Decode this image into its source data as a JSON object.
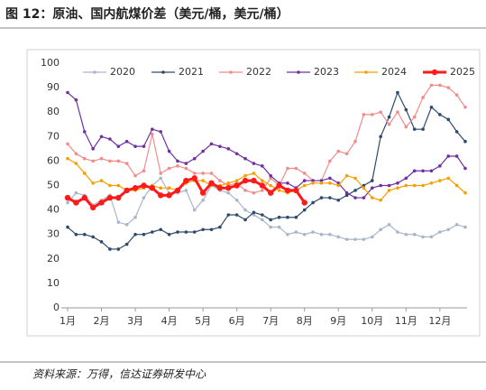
{
  "chart_data": {
    "type": "line",
    "title": "图 12：原油、国内航煤价差（美元/桶，美元/桶）",
    "source": "资料来源：万得，信达证券研发中心",
    "categories": [
      "1月",
      null,
      null,
      null,
      "2月",
      null,
      null,
      null,
      "3月",
      null,
      null,
      null,
      "4月",
      null,
      null,
      null,
      "5月",
      null,
      null,
      null,
      "6月",
      null,
      null,
      null,
      "7月",
      null,
      null,
      null,
      "8月",
      null,
      null,
      null,
      "9月",
      null,
      null,
      null,
      "10月",
      null,
      null,
      null,
      "11月",
      null,
      null,
      null,
      "12月",
      null,
      null,
      null
    ],
    "ylim": [
      0,
      100
    ],
    "yticks": [
      0,
      10,
      20,
      30,
      40,
      50,
      60,
      70,
      80,
      90,
      100
    ],
    "grid": false,
    "series": [
      {
        "name": "2020",
        "color": "#a9b6c8",
        "width": 1.2,
        "values": [
          43,
          47,
          46,
          42,
          44,
          46,
          35,
          34,
          37,
          45,
          50,
          53,
          47,
          47,
          48,
          40,
          44,
          50,
          48,
          47,
          44,
          40,
          38,
          36,
          33,
          33,
          30,
          31,
          30,
          31,
          30,
          30,
          29,
          28,
          28,
          28,
          29,
          32,
          34,
          31,
          30,
          30,
          29,
          29,
          31,
          32,
          34,
          33
        ]
      },
      {
        "name": "2021",
        "color": "#2e4a6b",
        "width": 1.2,
        "values": [
          33,
          30,
          30,
          29,
          27,
          24,
          24,
          26,
          30,
          30,
          31,
          32,
          30,
          31,
          31,
          31,
          32,
          32,
          33,
          38,
          38,
          36,
          39,
          38,
          36,
          37,
          37,
          37,
          40,
          43,
          45,
          45,
          44,
          46,
          48,
          50,
          52,
          70,
          78,
          88,
          81,
          73,
          73,
          82,
          79,
          77,
          72,
          68
        ]
      },
      {
        "name": "2022",
        "color": "#f28b8b",
        "width": 1.2,
        "values": [
          67,
          63,
          61,
          60,
          61,
          60,
          60,
          59,
          54,
          56,
          71,
          55,
          57,
          58,
          57,
          55,
          55,
          55,
          52,
          50,
          51,
          48,
          47,
          48,
          53,
          50,
          57,
          57,
          55,
          52,
          52,
          60,
          64,
          63,
          68,
          79,
          79,
          80,
          75,
          80,
          74,
          78,
          86,
          91,
          91,
          90,
          87,
          82
        ]
      },
      {
        "name": "2023",
        "color": "#7030a0",
        "width": 1.2,
        "values": [
          88,
          85,
          72,
          65,
          70,
          69,
          66,
          68,
          66,
          66,
          73,
          72,
          64,
          60,
          59,
          61,
          64,
          67,
          66,
          65,
          63,
          61,
          59,
          58,
          54,
          51,
          51,
          49,
          52,
          52,
          52,
          53,
          51,
          47,
          45,
          45,
          49,
          50,
          50,
          51,
          53,
          56,
          56,
          56,
          58,
          62,
          62,
          57
        ]
      },
      {
        "name": "2024",
        "color": "#f5a000",
        "width": 1.2,
        "values": [
          61,
          59,
          55,
          51,
          52,
          50,
          50,
          48,
          48,
          49,
          50,
          49,
          49,
          48,
          51,
          52,
          52,
          50,
          50,
          51,
          52,
          54,
          55,
          52,
          50,
          48,
          47,
          48,
          50,
          51,
          51,
          51,
          50,
          54,
          53,
          49,
          45,
          44,
          48,
          49,
          50,
          50,
          50,
          51,
          52,
          53,
          50,
          47
        ]
      },
      {
        "name": "2025",
        "color": "#ff1a1a",
        "width": 3,
        "values": [
          45,
          43,
          45,
          41,
          43,
          45,
          45,
          48,
          49,
          50,
          49,
          46,
          46,
          48,
          52,
          53,
          47,
          51,
          49,
          49,
          50,
          52,
          52,
          50,
          47,
          50,
          48,
          48,
          43,
          null,
          null,
          null,
          null,
          null,
          null,
          null,
          null,
          null,
          null,
          null,
          null,
          null,
          null,
          null,
          null,
          null,
          null,
          null
        ]
      }
    ]
  }
}
